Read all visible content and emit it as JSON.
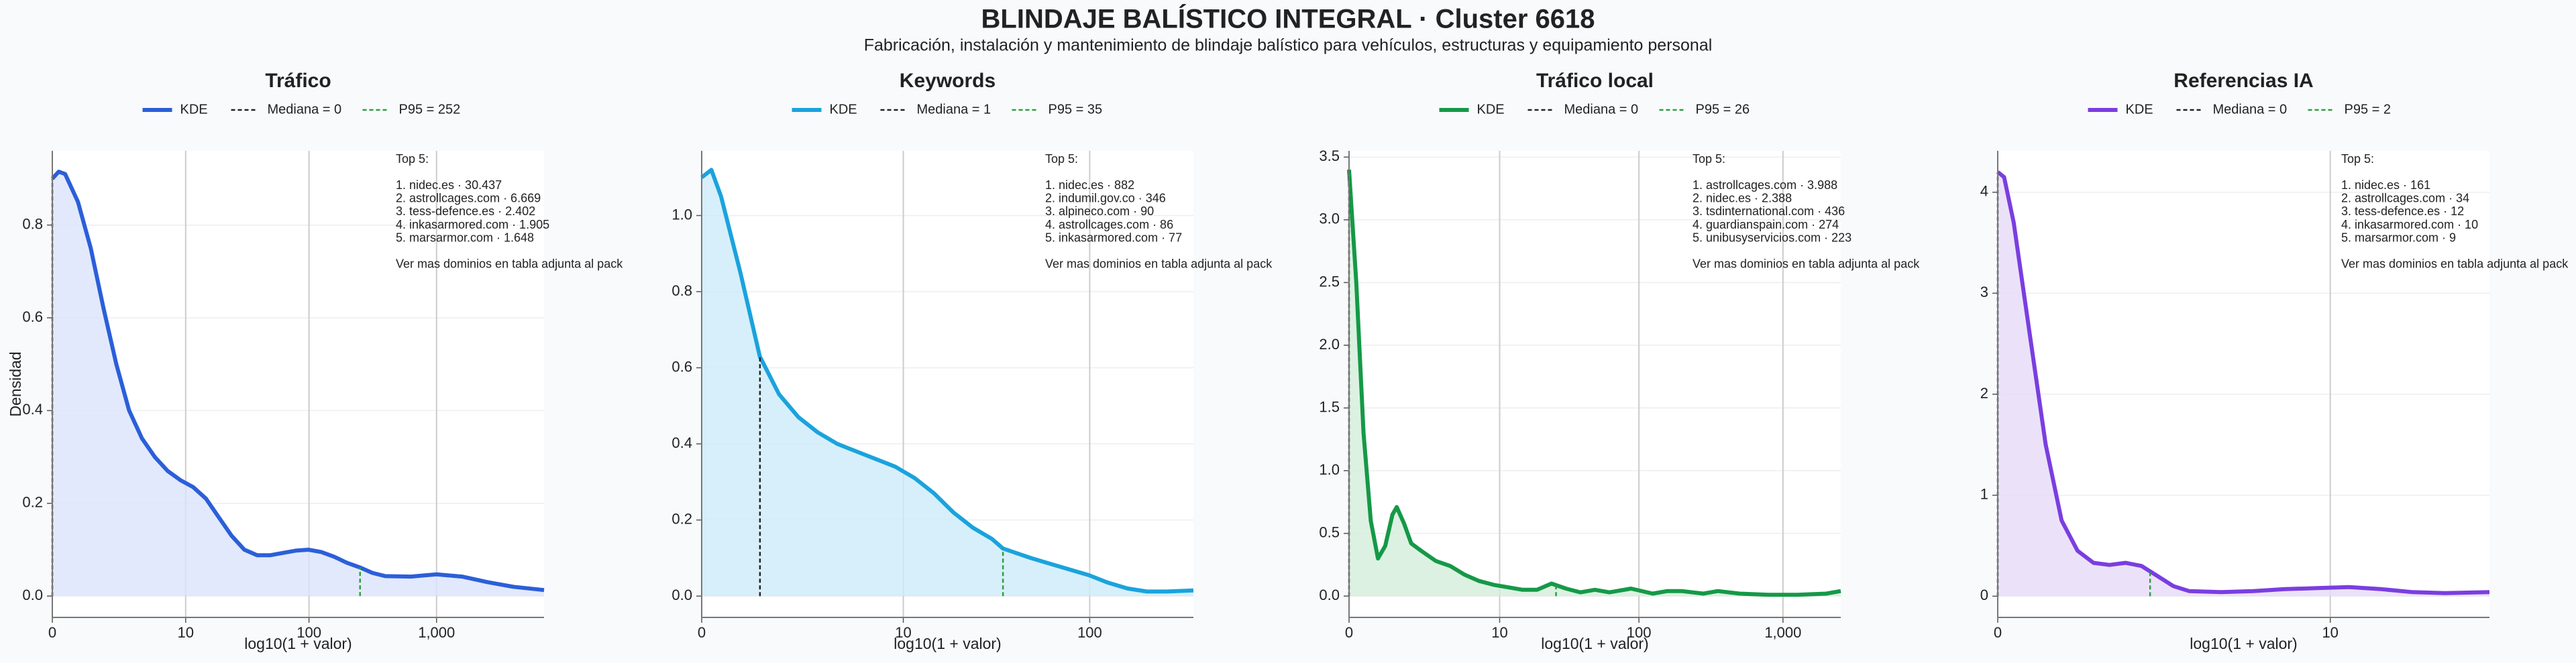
{
  "title": "BLINDAJE BALÍSTICO INTEGRAL · Cluster 6618",
  "subtitle": "Fabricación, instalación y mantenimiento de blindaje balístico para vehículos, estructuras y equipamiento personal",
  "chart_data": [
    {
      "type": "line",
      "title": "Tráfico",
      "xlabel": "log10(1 + valor)",
      "ylabel": "Densidad",
      "xscale": "log1p",
      "grid": true,
      "fill": "#dbe4fb",
      "series": [
        {
          "name": "KDE",
          "color": "#2b5fd9",
          "x": [
            0,
            0.122,
            0.259,
            0.585,
            0.995,
            1.512,
            2.162,
            2.981,
            4.012,
            5.31,
            6.943,
            9,
            11.59,
            14.85,
            18.95,
            24.12,
            30.62,
            38.81,
            49.12,
            62.1,
            78.43,
            99,
            124.9,
            157.5,
            198.5,
            250.2,
            315.2,
            397.1,
            630,
            999,
            1584,
            2511,
            3980,
            6917
          ],
          "values": [
            0.9,
            0.915,
            0.91,
            0.85,
            0.75,
            0.62,
            0.5,
            0.4,
            0.34,
            0.3,
            0.27,
            0.25,
            0.235,
            0.21,
            0.17,
            0.13,
            0.1,
            0.088,
            0.088,
            0.093,
            0.098,
            0.1,
            0.095,
            0.085,
            0.072,
            0.062,
            0.05,
            0.043,
            0.042,
            0.047,
            0.042,
            0.03,
            0.02,
            0.013
          ]
        }
      ],
      "markers": [
        {
          "name": "Mediana = 0",
          "x": 0,
          "color": "#222222"
        },
        {
          "name": "P95 = 252",
          "x": 252,
          "color": "#2e9e3e"
        }
      ],
      "top5_title": "Top 5:",
      "top5": [
        "1. nidec.es · 30.437",
        "2. astrollcages.com · 6.669",
        "3. tess-defence.es · 2.402",
        "4. inkasarmored.com · 1.905",
        "5. marsarmor.com · 1.648"
      ],
      "note": "Ver mas dominios en tabla adjunta al pack",
      "xlim": [
        0,
        6917
      ],
      "xticks": [
        0,
        10,
        100,
        {
          "value": 1000,
          "label": "1,000"
        }
      ],
      "ylim": [
        -0.046,
        0.96
      ],
      "yticks": [
        {
          "value": 0,
          "label": "0.0"
        },
        0.2,
        0.4,
        0.6,
        0.8
      ]
    },
    {
      "type": "line",
      "title": "Keywords",
      "xlabel": "log10(1 + valor)",
      "xscale": "log1p",
      "grid": true,
      "fill": "#cdebf9",
      "series": [
        {
          "name": "KDE",
          "color": "#1aa3dd",
          "x": [
            0,
            0.122,
            0.259,
            0.585,
            0.995,
            1.512,
            2.162,
            2.981,
            4.012,
            5.31,
            6.943,
            9,
            11.59,
            14.85,
            18.95,
            24.12,
            30.62,
            35,
            49.12,
            62.1,
            78.43,
            99,
            124.9,
            157.5,
            198.5,
            250.2,
            345.7
          ],
          "values": [
            1.1,
            1.12,
            1.05,
            0.85,
            0.63,
            0.53,
            0.47,
            0.43,
            0.4,
            0.38,
            0.36,
            0.34,
            0.31,
            0.27,
            0.22,
            0.18,
            0.15,
            0.125,
            0.1,
            0.085,
            0.07,
            0.055,
            0.035,
            0.02,
            0.012,
            0.012,
            0.015
          ]
        }
      ],
      "markers": [
        {
          "name": "Mediana = 1",
          "x": 1,
          "color": "#222222"
        },
        {
          "name": "P95 = 35",
          "x": 35,
          "color": "#2e9e3e"
        }
      ],
      "top5_title": "Top 5:",
      "top5": [
        "1. nidec.es · 882",
        "2. indumil.gov.co · 346",
        "3. alpineco.com · 90",
        "4. astrollcages.com · 86",
        "5. inkasarmored.com · 77"
      ],
      "note": "Ver mas dominios en tabla adjunta al pack",
      "xlim": [
        0,
        345.7
      ],
      "xticks": [
        0,
        10,
        100
      ],
      "ylim": [
        -0.056,
        1.17
      ],
      "yticks": [
        {
          "value": 0,
          "label": "0.0"
        },
        0.2,
        0.4,
        0.6,
        0.8,
        {
          "value": 1,
          "label": "1.0"
        }
      ]
    },
    {
      "type": "line",
      "title": "Tráfico local",
      "xlabel": "log10(1 + valor)",
      "xscale": "log1p",
      "grid": true,
      "fill": "#d3eedb",
      "series": [
        {
          "name": "KDE",
          "color": "#159947",
          "x": [
            0,
            0.122,
            0.259,
            0.413,
            0.585,
            0.778,
            0.995,
            1.138,
            1.399,
            1.692,
            2.162,
            2.981,
            4.012,
            5.31,
            6.943,
            9,
            11.59,
            14.85,
            18.95,
            24.12,
            30.62,
            38.81,
            49.12,
            62.1,
            88.13,
            124.9,
            157.5,
            198.5,
            280.8,
            353.8,
            500.2,
            793.3,
            1258,
            1994,
            2511
          ],
          "values": [
            3.4,
            2.5,
            1.3,
            0.6,
            0.3,
            0.4,
            0.65,
            0.71,
            0.58,
            0.42,
            0.36,
            0.28,
            0.24,
            0.17,
            0.12,
            0.09,
            0.07,
            0.05,
            0.05,
            0.1,
            0.06,
            0.03,
            0.05,
            0.03,
            0.06,
            0.02,
            0.04,
            0.04,
            0.02,
            0.04,
            0.02,
            0.01,
            0.01,
            0.02,
            0.04
          ]
        }
      ],
      "markers": [
        {
          "name": "Mediana = 0",
          "x": 0,
          "color": "#222222"
        },
        {
          "name": "P95 = 26",
          "x": 26,
          "color": "#2e9e3e"
        }
      ],
      "top5_title": "Top 5:",
      "top5": [
        "1. astrollcages.com · 3.988",
        "2. nidec.es · 2.388",
        "3. tsdinternational.com · 436",
        "4. guardianspain.com · 274",
        "5. unibusyservicios.com · 223"
      ],
      "note": "Ver mas dominios en tabla adjunta al pack",
      "xlim": [
        0,
        2511
      ],
      "xticks": [
        0,
        10,
        100,
        {
          "value": 1000,
          "label": "1,000"
        }
      ],
      "ylim": [
        -0.17,
        3.55
      ],
      "yticks": [
        {
          "value": 0,
          "label": "0.0"
        },
        0.5,
        {
          "value": 1,
          "label": "1.0"
        },
        1.5,
        {
          "value": 2,
          "label": "2.0"
        },
        2.5,
        {
          "value": 3,
          "label": "3.0"
        },
        3.5
      ]
    },
    {
      "type": "line",
      "title": "Referencias IA",
      "xlabel": "log10(1 + valor)",
      "xscale": "log1p",
      "grid": true,
      "fill": "#e6dbf7",
      "series": [
        {
          "name": "KDE",
          "color": "#7a3ee0",
          "x": [
            0,
            0.047,
            0.122,
            0.259,
            0.413,
            0.585,
            0.778,
            0.995,
            1.239,
            1.512,
            1.818,
            2.162,
            2.548,
            2.981,
            4.012,
            5.31,
            6.943,
            9,
            11.59,
            14.85,
            18.95,
            24.12,
            33.67
          ],
          "values": [
            4.2,
            4.15,
            3.7,
            2.6,
            1.5,
            0.75,
            0.45,
            0.33,
            0.31,
            0.33,
            0.3,
            0.2,
            0.1,
            0.05,
            0.04,
            0.05,
            0.07,
            0.08,
            0.09,
            0.07,
            0.04,
            0.03,
            0.04
          ]
        }
      ],
      "markers": [
        {
          "name": "Mediana = 0",
          "x": 0,
          "color": "#222222"
        },
        {
          "name": "P95 = 2",
          "x": 2,
          "color": "#2e9e3e"
        }
      ],
      "top5_title": "Top 5:",
      "top5": [
        "1. nidec.es · 161",
        "2. astrollcages.com · 34",
        "3. tess-defence.es · 12",
        "4. inkasarmored.com · 10",
        "5. marsarmor.com · 9"
      ],
      "note": "Ver mas dominios en tabla adjunta al pack",
      "xlim": [
        0,
        33.67
      ],
      "xticks": [
        0,
        10
      ],
      "ylim": [
        -0.21,
        4.41
      ],
      "yticks": [
        0,
        1,
        2,
        3,
        4
      ]
    }
  ]
}
